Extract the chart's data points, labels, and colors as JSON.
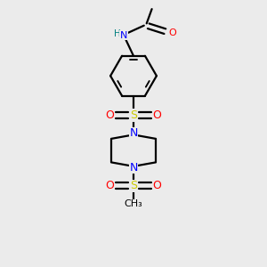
{
  "bg_color": "#ebebeb",
  "bond_color": "#000000",
  "bond_width": 1.6,
  "atom_colors": {
    "N": "#0000ff",
    "O": "#ff0000",
    "S": "#cccc00",
    "H": "#008080",
    "C": "#000000"
  },
  "figsize": [
    3.0,
    3.0
  ],
  "dpi": 100
}
